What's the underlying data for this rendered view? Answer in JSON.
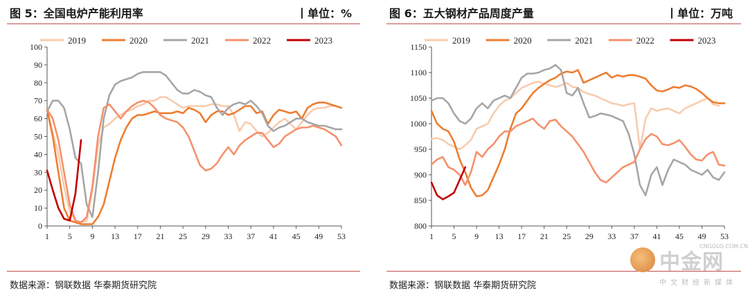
{
  "watermark": {
    "name": "中金网",
    "domain": "CNGOLD.COM.CN",
    "subtitle": "中文财经新媒体"
  },
  "chart_data": [
    {
      "type": "line",
      "title": "图 5：全国电炉产能利用率",
      "unit": "丨单位：%",
      "source": "数据来源：钢联数据 华泰期货研究院",
      "xticks": [
        1,
        5,
        9,
        13,
        17,
        21,
        25,
        29,
        33,
        37,
        41,
        45,
        49,
        53
      ],
      "xlim": [
        1,
        53
      ],
      "ylim": [
        0,
        100
      ],
      "yticks": [
        0,
        10,
        20,
        30,
        40,
        50,
        60,
        70,
        80,
        90,
        100
      ],
      "legend_position": "top",
      "grid": false,
      "series": [
        {
          "name": "2019",
          "color": "#f8cbad",
          "x": [
            1,
            2,
            3,
            4,
            5,
            6,
            7,
            8,
            9,
            10,
            11,
            12,
            13,
            14,
            15,
            16,
            17,
            18,
            19,
            20,
            21,
            22,
            23,
            24,
            25,
            26,
            27,
            28,
            29,
            30,
            31,
            32,
            33,
            34,
            35,
            36,
            37,
            38,
            39,
            40,
            41,
            42,
            43,
            44,
            45,
            46,
            47,
            48,
            49,
            50,
            51,
            52
          ],
          "y": [
            65,
            52,
            40,
            22,
            8,
            3,
            2,
            3,
            20,
            45,
            55,
            57,
            60,
            62,
            64,
            65,
            67,
            68,
            70,
            70,
            72,
            72,
            70,
            68,
            66,
            67,
            67,
            67,
            67,
            68,
            68,
            67,
            67,
            62,
            53,
            58,
            57,
            53,
            50,
            52,
            55,
            58,
            60,
            57,
            54,
            58,
            62,
            65,
            66,
            66,
            67,
            67
          ]
        },
        {
          "name": "2020",
          "color": "#ed7d31",
          "x": [
            1,
            2,
            3,
            4,
            5,
            6,
            7,
            8,
            9,
            10,
            11,
            12,
            13,
            14,
            15,
            16,
            17,
            18,
            19,
            20,
            21,
            22,
            23,
            24,
            25,
            26,
            27,
            28,
            29,
            30,
            31,
            32,
            33,
            34,
            35,
            36,
            37,
            38,
            39,
            40,
            41,
            42,
            43,
            44,
            45,
            46,
            47,
            48,
            49,
            50,
            51,
            52,
            53
          ],
          "y": [
            65,
            50,
            30,
            10,
            3,
            2,
            1,
            1,
            1,
            5,
            12,
            25,
            38,
            48,
            55,
            60,
            62,
            62,
            63,
            64,
            63,
            63,
            63,
            64,
            63,
            66,
            65,
            63,
            58,
            62,
            64,
            64,
            62,
            63,
            65,
            67,
            67,
            63,
            64,
            57,
            62,
            65,
            64,
            63,
            64,
            60,
            66,
            68,
            69,
            69,
            68,
            67,
            66
          ]
        },
        {
          "name": "2021",
          "color": "#a6a6a6",
          "x": [
            1,
            2,
            3,
            4,
            5,
            6,
            7,
            8,
            9,
            10,
            11,
            12,
            13,
            14,
            15,
            16,
            17,
            18,
            19,
            20,
            21,
            22,
            23,
            24,
            25,
            26,
            27,
            28,
            29,
            30,
            31,
            32,
            33,
            34,
            35,
            36,
            37,
            38,
            39,
            40,
            41,
            42,
            43,
            44,
            45,
            46,
            47,
            48,
            49,
            50,
            51,
            52,
            53
          ],
          "y": [
            64,
            70,
            70,
            66,
            54,
            38,
            35,
            12,
            5,
            30,
            60,
            73,
            79,
            81,
            82,
            83,
            85,
            86,
            86,
            86,
            86,
            84,
            80,
            76,
            74,
            74,
            76,
            75,
            73,
            72,
            66,
            62,
            66,
            68,
            69,
            68,
            70,
            67,
            63,
            56,
            53,
            55,
            56,
            58,
            60,
            60,
            58,
            57,
            56,
            56,
            55,
            54,
            54
          ]
        },
        {
          "name": "2022",
          "color": "#f4916b",
          "x": [
            1,
            2,
            3,
            4,
            5,
            6,
            7,
            8,
            9,
            10,
            11,
            12,
            13,
            14,
            15,
            16,
            17,
            18,
            19,
            20,
            21,
            22,
            23,
            24,
            25,
            26,
            27,
            28,
            29,
            30,
            31,
            32,
            33,
            34,
            35,
            36,
            37,
            38,
            39,
            40,
            41,
            42,
            43,
            44,
            45,
            46,
            47,
            48,
            49,
            50,
            51,
            52,
            53
          ],
          "y": [
            65,
            60,
            48,
            30,
            12,
            3,
            2,
            5,
            22,
            50,
            66,
            68,
            64,
            60,
            64,
            67,
            69,
            70,
            69,
            66,
            62,
            60,
            59,
            58,
            55,
            50,
            42,
            34,
            31,
            32,
            35,
            40,
            44,
            40,
            45,
            48,
            50,
            52,
            52,
            48,
            44,
            46,
            50,
            52,
            54,
            55,
            55,
            56,
            55,
            54,
            52,
            50,
            45
          ]
        },
        {
          "name": "2023",
          "color": "#c00000",
          "x": [
            1,
            2,
            3,
            4,
            5,
            6,
            7
          ],
          "y": [
            31,
            20,
            10,
            4,
            3,
            18,
            48
          ]
        }
      ]
    },
    {
      "type": "line",
      "title": "图 6：五大钢材产品周度产量",
      "unit": "丨单位：万吨",
      "source": "数据来源：钢联数据 华泰期货研究院",
      "xticks": [
        1,
        5,
        9,
        13,
        17,
        21,
        25,
        29,
        33,
        37,
        41,
        45,
        49,
        53
      ],
      "xlim": [
        1,
        53
      ],
      "ylim": [
        800,
        1150
      ],
      "yticks": [
        800,
        850,
        900,
        950,
        1000,
        1050,
        1100,
        1150
      ],
      "legend_position": "top",
      "grid": false,
      "series": [
        {
          "name": "2019",
          "color": "#f8cbad",
          "x": [
            1,
            2,
            3,
            4,
            5,
            6,
            7,
            8,
            9,
            10,
            11,
            12,
            13,
            14,
            15,
            16,
            17,
            18,
            19,
            20,
            21,
            22,
            23,
            24,
            25,
            26,
            27,
            28,
            29,
            30,
            31,
            32,
            33,
            34,
            35,
            36,
            37,
            38,
            39,
            40,
            41,
            42,
            43,
            44,
            45,
            46,
            47,
            48,
            49,
            50,
            51,
            52
          ],
          "y": [
            970,
            972,
            968,
            960,
            955,
            950,
            958,
            968,
            990,
            995,
            1000,
            1020,
            1035,
            1045,
            1050,
            1060,
            1070,
            1075,
            1080,
            1082,
            1078,
            1075,
            1072,
            1075,
            1080,
            1072,
            1070,
            1062,
            1058,
            1055,
            1050,
            1045,
            1040,
            1038,
            1035,
            1038,
            1040,
            950,
            1010,
            1030,
            1025,
            1028,
            1030,
            1025,
            1020,
            1030,
            1035,
            1040,
            1045,
            1050,
            1038,
            1035
          ]
        },
        {
          "name": "2020",
          "color": "#ed7d31",
          "x": [
            1,
            2,
            3,
            4,
            5,
            6,
            7,
            8,
            9,
            10,
            11,
            12,
            13,
            14,
            15,
            16,
            17,
            18,
            19,
            20,
            21,
            22,
            23,
            24,
            25,
            26,
            27,
            28,
            29,
            30,
            31,
            32,
            33,
            34,
            35,
            36,
            37,
            38,
            39,
            40,
            41,
            42,
            43,
            44,
            45,
            46,
            47,
            48,
            49,
            50,
            51,
            52,
            53
          ],
          "y": [
            1025,
            1000,
            990,
            985,
            965,
            930,
            905,
            875,
            858,
            860,
            870,
            895,
            920,
            950,
            990,
            1020,
            1030,
            1045,
            1060,
            1070,
            1078,
            1085,
            1090,
            1098,
            1102,
            1100,
            1105,
            1080,
            1085,
            1090,
            1095,
            1100,
            1090,
            1095,
            1092,
            1095,
            1095,
            1092,
            1088,
            1075,
            1065,
            1063,
            1067,
            1072,
            1070,
            1075,
            1073,
            1068,
            1060,
            1050,
            1042,
            1040,
            1040
          ]
        },
        {
          "name": "2021",
          "color": "#a6a6a6",
          "x": [
            1,
            2,
            3,
            4,
            5,
            6,
            7,
            8,
            9,
            10,
            11,
            12,
            13,
            14,
            15,
            16,
            17,
            18,
            19,
            20,
            21,
            22,
            23,
            24,
            25,
            26,
            27,
            28,
            29,
            30,
            31,
            32,
            33,
            34,
            35,
            36,
            37,
            38,
            39,
            40,
            41,
            42,
            43,
            44,
            45,
            46,
            47,
            48,
            49,
            50,
            51,
            52,
            53
          ],
          "y": [
            1045,
            1050,
            1050,
            1040,
            1020,
            1005,
            1000,
            1010,
            1030,
            1040,
            1030,
            1045,
            1050,
            1055,
            1050,
            1070,
            1090,
            1098,
            1098,
            1100,
            1105,
            1108,
            1115,
            1105,
            1060,
            1055,
            1070,
            1040,
            1012,
            1015,
            1020,
            1018,
            1015,
            1010,
            1005,
            980,
            940,
            880,
            860,
            900,
            915,
            880,
            910,
            930,
            925,
            920,
            910,
            905,
            900,
            910,
            895,
            890,
            905
          ]
        },
        {
          "name": "2022",
          "color": "#f4916b",
          "x": [
            1,
            2,
            3,
            4,
            5,
            6,
            7,
            8,
            9,
            10,
            11,
            12,
            13,
            14,
            15,
            16,
            17,
            18,
            19,
            20,
            21,
            22,
            23,
            24,
            25,
            26,
            27,
            28,
            29,
            30,
            31,
            32,
            33,
            34,
            35,
            36,
            37,
            38,
            39,
            40,
            41,
            42,
            43,
            44,
            45,
            46,
            47,
            48,
            49,
            50,
            51,
            52,
            53
          ],
          "y": [
            920,
            930,
            935,
            915,
            910,
            900,
            880,
            905,
            945,
            935,
            950,
            960,
            975,
            985,
            985,
            995,
            1000,
            1005,
            1010,
            998,
            990,
            1005,
            1008,
            995,
            985,
            975,
            960,
            945,
            925,
            905,
            890,
            885,
            895,
            905,
            915,
            920,
            925,
            950,
            970,
            980,
            975,
            960,
            958,
            962,
            968,
            955,
            940,
            930,
            928,
            940,
            945,
            920,
            918
          ]
        },
        {
          "name": "2023",
          "color": "#c00000",
          "x": [
            1,
            2,
            3,
            4,
            5,
            6,
            7
          ],
          "y": [
            885,
            860,
            852,
            858,
            865,
            890,
            915
          ]
        }
      ]
    }
  ]
}
